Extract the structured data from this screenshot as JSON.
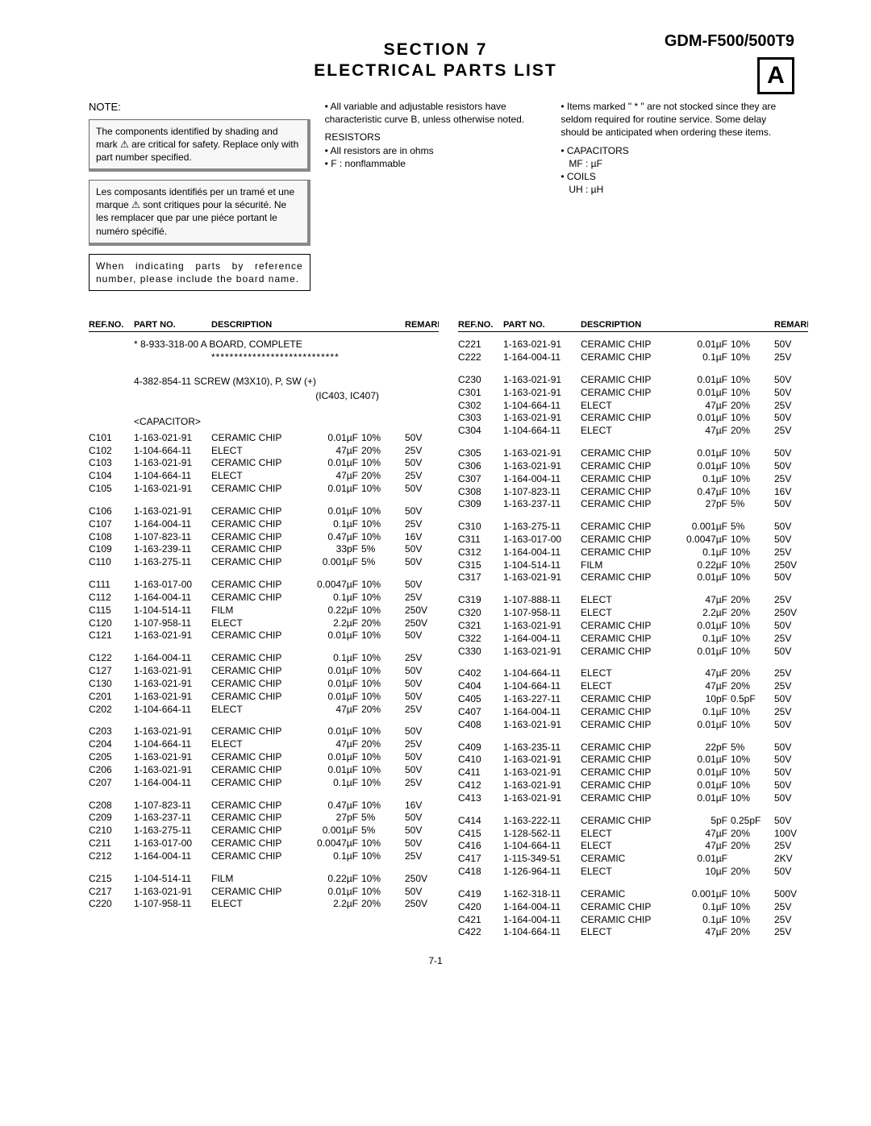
{
  "header": {
    "model": "GDM-F500/500T9",
    "badge": "A",
    "section_title": "SECTION  7",
    "section_subtitle": "ELECTRICAL  PARTS  LIST"
  },
  "notes": {
    "note_label": "NOTE:",
    "box1": "The components identified by shading and mark ⚠ are critical for safety. Replace only with part number specified.",
    "box2": "Les composants identifiés per un tramé et une marque ⚠ sont critiques pour la sécurité. Ne les remplacer que par une piéce portant le numéro spécifié.",
    "box3": "When indicating parts by reference number, please include the board name.",
    "col2_line1": "• All variable and adjustable resistors have characteristic curve B, unless otherwise noted.",
    "col2_res_header": "RESISTORS",
    "col2_res1": "• All resistors are in ohms",
    "col2_res2": "• F : nonflammable",
    "col3_line1": "• Items marked \" * \" are not stocked since they are seldom required for routine service. Some delay should be anticipated when ordering these items.",
    "col3_cap": "• CAPACITORS",
    "col3_cap_sub": "MF : µF",
    "col3_coil": "• COILS",
    "col3_coil_sub": "UH : µH"
  },
  "table": {
    "headers": {
      "refno": "REF.NO.",
      "partno": "PART NO.",
      "desc": "DESCRIPTION",
      "remark": "REMARK"
    },
    "board_line": "* 8-933-318-00 A BOARD, COMPLETE",
    "stars": "****************************",
    "screw_line": "4-382-854-11 SCREW (M3X10), P, SW (+)",
    "screw_sub": "(IC403, IC407)",
    "cap_header": "<CAPACITOR>",
    "left": [
      [
        "C101",
        "1-163-021-91",
        "CERAMIC CHIP",
        "0.01µF",
        "10%",
        "50V"
      ],
      [
        "C102",
        "1-104-664-11",
        "ELECT",
        "47µF",
        "20%",
        "25V"
      ],
      [
        "C103",
        "1-163-021-91",
        "CERAMIC CHIP",
        "0.01µF",
        "10%",
        "50V"
      ],
      [
        "C104",
        "1-104-664-11",
        "ELECT",
        "47µF",
        "20%",
        "25V"
      ],
      [
        "C105",
        "1-163-021-91",
        "CERAMIC CHIP",
        "0.01µF",
        "10%",
        "50V"
      ],
      null,
      [
        "C106",
        "1-163-021-91",
        "CERAMIC CHIP",
        "0.01µF",
        "10%",
        "50V"
      ],
      [
        "C107",
        "1-164-004-11",
        "CERAMIC CHIP",
        "0.1µF",
        "10%",
        "25V"
      ],
      [
        "C108",
        "1-107-823-11",
        "CERAMIC CHIP",
        "0.47µF",
        "10%",
        "16V"
      ],
      [
        "C109",
        "1-163-239-11",
        "CERAMIC CHIP",
        "33pF",
        "5%",
        "50V"
      ],
      [
        "C110",
        "1-163-275-11",
        "CERAMIC CHIP",
        "0.001µF",
        "5%",
        "50V"
      ],
      null,
      [
        "C111",
        "1-163-017-00",
        "CERAMIC CHIP",
        "0.0047µF",
        "10%",
        "50V"
      ],
      [
        "C112",
        "1-164-004-11",
        "CERAMIC CHIP",
        "0.1µF",
        "10%",
        "25V"
      ],
      [
        "C115",
        "1-104-514-11",
        "FILM",
        "0.22µF",
        "10%",
        "250V"
      ],
      [
        "C120",
        "1-107-958-11",
        "ELECT",
        "2.2µF",
        "20%",
        "250V"
      ],
      [
        "C121",
        "1-163-021-91",
        "CERAMIC CHIP",
        "0.01µF",
        "10%",
        "50V"
      ],
      null,
      [
        "C122",
        "1-164-004-11",
        "CERAMIC CHIP",
        "0.1µF",
        "10%",
        "25V"
      ],
      [
        "C127",
        "1-163-021-91",
        "CERAMIC CHIP",
        "0.01µF",
        "10%",
        "50V"
      ],
      [
        "C130",
        "1-163-021-91",
        "CERAMIC CHIP",
        "0.01µF",
        "10%",
        "50V"
      ],
      [
        "C201",
        "1-163-021-91",
        "CERAMIC CHIP",
        "0.01µF",
        "10%",
        "50V"
      ],
      [
        "C202",
        "1-104-664-11",
        "ELECT",
        "47µF",
        "20%",
        "25V"
      ],
      null,
      [
        "C203",
        "1-163-021-91",
        "CERAMIC CHIP",
        "0.01µF",
        "10%",
        "50V"
      ],
      [
        "C204",
        "1-104-664-11",
        "ELECT",
        "47µF",
        "20%",
        "25V"
      ],
      [
        "C205",
        "1-163-021-91",
        "CERAMIC CHIP",
        "0.01µF",
        "10%",
        "50V"
      ],
      [
        "C206",
        "1-163-021-91",
        "CERAMIC CHIP",
        "0.01µF",
        "10%",
        "50V"
      ],
      [
        "C207",
        "1-164-004-11",
        "CERAMIC CHIP",
        "0.1µF",
        "10%",
        "25V"
      ],
      null,
      [
        "C208",
        "1-107-823-11",
        "CERAMIC CHIP",
        "0.47µF",
        "10%",
        "16V"
      ],
      [
        "C209",
        "1-163-237-11",
        "CERAMIC CHIP",
        "27pF",
        "5%",
        "50V"
      ],
      [
        "C210",
        "1-163-275-11",
        "CERAMIC CHIP",
        "0.001µF",
        "5%",
        "50V"
      ],
      [
        "C211",
        "1-163-017-00",
        "CERAMIC CHIP",
        "0.0047µF",
        "10%",
        "50V"
      ],
      [
        "C212",
        "1-164-004-11",
        "CERAMIC CHIP",
        "0.1µF",
        "10%",
        "25V"
      ],
      null,
      [
        "C215",
        "1-104-514-11",
        "FILM",
        "0.22µF",
        "10%",
        "250V"
      ],
      [
        "C217",
        "1-163-021-91",
        "CERAMIC CHIP",
        "0.01µF",
        "10%",
        "50V"
      ],
      [
        "C220",
        "1-107-958-11",
        "ELECT",
        "2.2µF",
        "20%",
        "250V"
      ]
    ],
    "right": [
      [
        "C221",
        "1-163-021-91",
        "CERAMIC CHIP",
        "0.01µF",
        "10%",
        "50V"
      ],
      [
        "C222",
        "1-164-004-11",
        "CERAMIC CHIP",
        "0.1µF",
        "10%",
        "25V"
      ],
      null,
      [
        "C230",
        "1-163-021-91",
        "CERAMIC CHIP",
        "0.01µF",
        "10%",
        "50V"
      ],
      [
        "C301",
        "1-163-021-91",
        "CERAMIC CHIP",
        "0.01µF",
        "10%",
        "50V"
      ],
      [
        "C302",
        "1-104-664-11",
        "ELECT",
        "47µF",
        "20%",
        "25V"
      ],
      [
        "C303",
        "1-163-021-91",
        "CERAMIC CHIP",
        "0.01µF",
        "10%",
        "50V"
      ],
      [
        "C304",
        "1-104-664-11",
        "ELECT",
        "47µF",
        "20%",
        "25V"
      ],
      null,
      [
        "C305",
        "1-163-021-91",
        "CERAMIC CHIP",
        "0.01µF",
        "10%",
        "50V"
      ],
      [
        "C306",
        "1-163-021-91",
        "CERAMIC CHIP",
        "0.01µF",
        "10%",
        "50V"
      ],
      [
        "C307",
        "1-164-004-11",
        "CERAMIC CHIP",
        "0.1µF",
        "10%",
        "25V"
      ],
      [
        "C308",
        "1-107-823-11",
        "CERAMIC CHIP",
        "0.47µF",
        "10%",
        "16V"
      ],
      [
        "C309",
        "1-163-237-11",
        "CERAMIC CHIP",
        "27pF",
        "5%",
        "50V"
      ],
      null,
      [
        "C310",
        "1-163-275-11",
        "CERAMIC CHIP",
        "0.001µF",
        "5%",
        "50V"
      ],
      [
        "C311",
        "1-163-017-00",
        "CERAMIC CHIP",
        "0.0047µF",
        "10%",
        "50V"
      ],
      [
        "C312",
        "1-164-004-11",
        "CERAMIC CHIP",
        "0.1µF",
        "10%",
        "25V"
      ],
      [
        "C315",
        "1-104-514-11",
        "FILM",
        "0.22µF",
        "10%",
        "250V"
      ],
      [
        "C317",
        "1-163-021-91",
        "CERAMIC CHIP",
        "0.01µF",
        "10%",
        "50V"
      ],
      null,
      [
        "C319",
        "1-107-888-11",
        "ELECT",
        "47µF",
        "20%",
        "25V"
      ],
      [
        "C320",
        "1-107-958-11",
        "ELECT",
        "2.2µF",
        "20%",
        "250V"
      ],
      [
        "C321",
        "1-163-021-91",
        "CERAMIC CHIP",
        "0.01µF",
        "10%",
        "50V"
      ],
      [
        "C322",
        "1-164-004-11",
        "CERAMIC CHIP",
        "0.1µF",
        "10%",
        "25V"
      ],
      [
        "C330",
        "1-163-021-91",
        "CERAMIC CHIP",
        "0.01µF",
        "10%",
        "50V"
      ],
      null,
      [
        "C402",
        "1-104-664-11",
        "ELECT",
        "47µF",
        "20%",
        "25V"
      ],
      [
        "C404",
        "1-104-664-11",
        "ELECT",
        "47µF",
        "20%",
        "25V"
      ],
      [
        "C405",
        "1-163-227-11",
        "CERAMIC CHIP",
        "10pF",
        "0.5pF",
        "50V"
      ],
      [
        "C407",
        "1-164-004-11",
        "CERAMIC CHIP",
        "0.1µF",
        "10%",
        "25V"
      ],
      [
        "C408",
        "1-163-021-91",
        "CERAMIC CHIP",
        "0.01µF",
        "10%",
        "50V"
      ],
      null,
      [
        "C409",
        "1-163-235-11",
        "CERAMIC CHIP",
        "22pF",
        "5%",
        "50V"
      ],
      [
        "C410",
        "1-163-021-91",
        "CERAMIC CHIP",
        "0.01µF",
        "10%",
        "50V"
      ],
      [
        "C411",
        "1-163-021-91",
        "CERAMIC CHIP",
        "0.01µF",
        "10%",
        "50V"
      ],
      [
        "C412",
        "1-163-021-91",
        "CERAMIC CHIP",
        "0.01µF",
        "10%",
        "50V"
      ],
      [
        "C413",
        "1-163-021-91",
        "CERAMIC CHIP",
        "0.01µF",
        "10%",
        "50V"
      ],
      null,
      [
        "C414",
        "1-163-222-11",
        "CERAMIC CHIP",
        "5pF",
        "0.25pF",
        "50V"
      ],
      [
        "C415",
        "1-128-562-11",
        "ELECT",
        "47µF",
        "20%",
        "100V"
      ],
      [
        "C416",
        "1-104-664-11",
        "ELECT",
        "47µF",
        "20%",
        "25V"
      ],
      [
        "C417",
        "1-115-349-51",
        "CERAMIC",
        "0.01µF",
        "",
        "2KV"
      ],
      [
        "C418",
        "1-126-964-11",
        "ELECT",
        "10µF",
        "20%",
        "50V"
      ],
      null,
      [
        "C419",
        "1-162-318-11",
        "CERAMIC",
        "0.001µF",
        "10%",
        "500V"
      ],
      [
        "C420",
        "1-164-004-11",
        "CERAMIC CHIP",
        "0.1µF",
        "10%",
        "25V"
      ],
      [
        "C421",
        "1-164-004-11",
        "CERAMIC CHIP",
        "0.1µF",
        "10%",
        "25V"
      ],
      [
        "C422",
        "1-104-664-11",
        "ELECT",
        "47µF",
        "20%",
        "25V"
      ]
    ]
  },
  "page_number": "7-1"
}
